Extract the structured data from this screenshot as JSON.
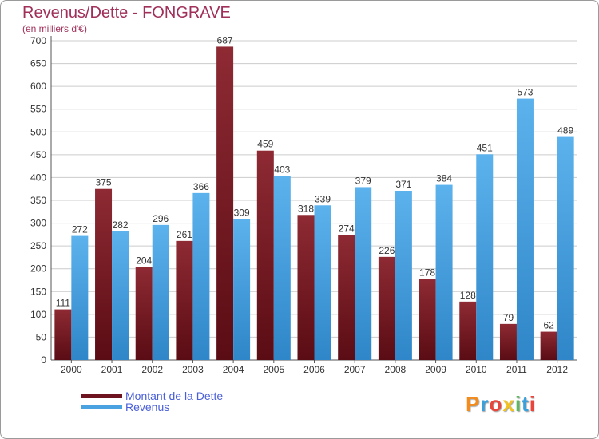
{
  "title": "Revenus/Dette - FONGRAVE",
  "subtitle": "(en milliers d'€)",
  "brand": "Proxiti",
  "colors": {
    "dette": "#7a1f28",
    "revenus": "#4aa3e0",
    "title": "#a0305a",
    "grid": "#cccccc",
    "legend_text": "#4a5fd8"
  },
  "chart_data": {
    "type": "bar",
    "title": "Revenus/Dette - FONGRAVE",
    "ylabel": "(en milliers d'€)",
    "xlabel": "",
    "categories": [
      "2000",
      "2001",
      "2002",
      "2003",
      "2004",
      "2005",
      "2006",
      "2007",
      "2008",
      "2009",
      "2010",
      "2011",
      "2012"
    ],
    "series": [
      {
        "name": "Montant de la Dette",
        "color": "#7a1f28",
        "values": [
          111,
          375,
          204,
          261,
          687,
          459,
          318,
          274,
          226,
          178,
          128,
          79,
          62
        ]
      },
      {
        "name": "Revenus",
        "color": "#4aa3e0",
        "values": [
          272,
          282,
          296,
          366,
          309,
          403,
          339,
          379,
          371,
          384,
          451,
          573,
          489
        ]
      }
    ],
    "ylim": [
      0,
      700
    ],
    "yticks": [
      0,
      50,
      100,
      150,
      200,
      250,
      300,
      350,
      400,
      450,
      500,
      550,
      600,
      650,
      700
    ],
    "grid": true,
    "legend_position": "bottom-left"
  }
}
